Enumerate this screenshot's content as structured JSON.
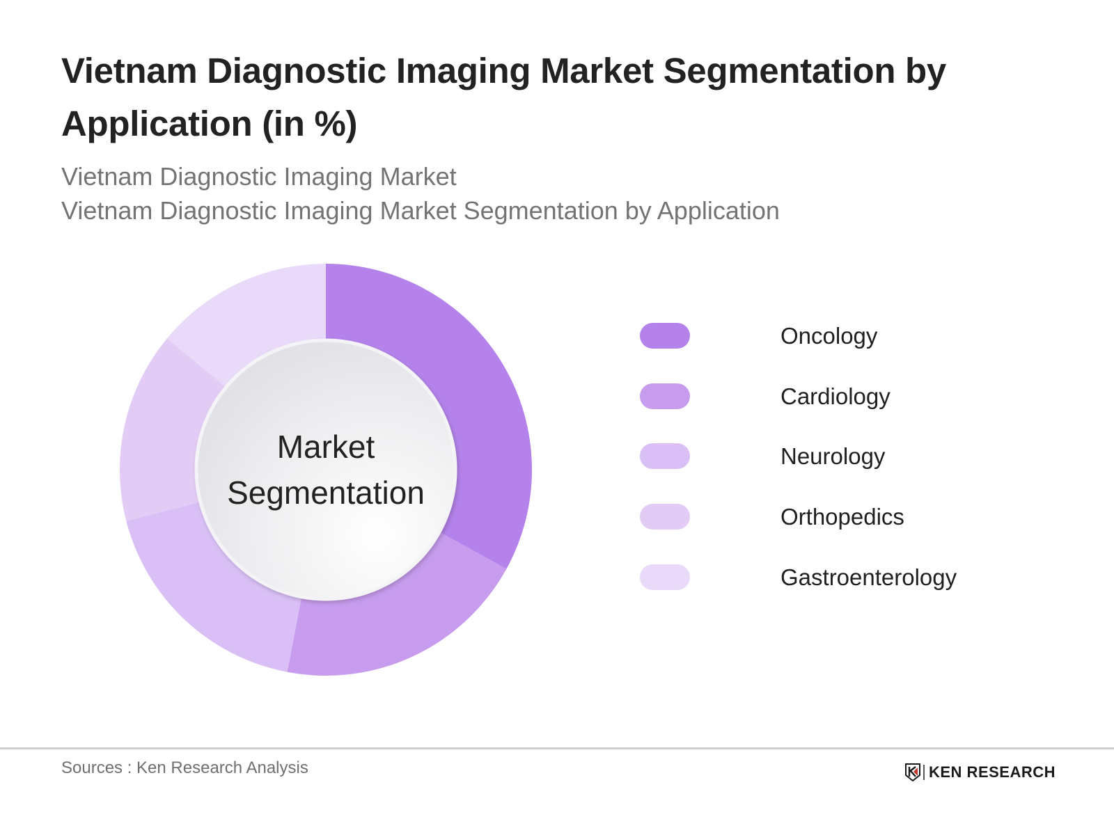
{
  "header": {
    "title": "Vietnam Diagnostic Imaging Market Segmentation by Application (in %)",
    "subtitle_1": "Vietnam Diagnostic Imaging Market",
    "subtitle_2": "Vietnam Diagnostic Imaging Market Segmentation by Application"
  },
  "chart": {
    "center_label_line1": "Market",
    "center_label_line2": "Segmentation"
  },
  "legend": {
    "items": [
      {
        "label": "Oncology",
        "color": "#B482EA"
      },
      {
        "label": "Cardiology",
        "color": "#C79CEE"
      },
      {
        "label": "Neurology",
        "color": "#D9BFF5"
      },
      {
        "label": "Orthopedics",
        "color": "#E2CCF6"
      },
      {
        "label": "Gastroenterology",
        "color": "#EADAFA"
      }
    ]
  },
  "footer": {
    "source": "Sources : Ken Research Analysis",
    "logo_text": "KEN RESEARCH",
    "logo_mark": "K"
  },
  "chart_data": {
    "type": "pie",
    "subtype": "donut",
    "title": "Vietnam Diagnostic Imaging Market Segmentation by Application (in %)",
    "subtitle": "Vietnam Diagnostic Imaging Market Segmentation by Application",
    "categories": [
      "Oncology",
      "Cardiology",
      "Neurology",
      "Orthopedics",
      "Gastroenterology"
    ],
    "values": [
      33,
      20,
      18,
      15,
      14
    ],
    "colors": [
      "#B482EA",
      "#C79CEE",
      "#D9BFF5",
      "#E2CCF6",
      "#EADAFA"
    ],
    "unit": "%",
    "center_text": "Market Segmentation",
    "legend_position": "right",
    "start_angle": "12 o'clock, clockwise"
  }
}
